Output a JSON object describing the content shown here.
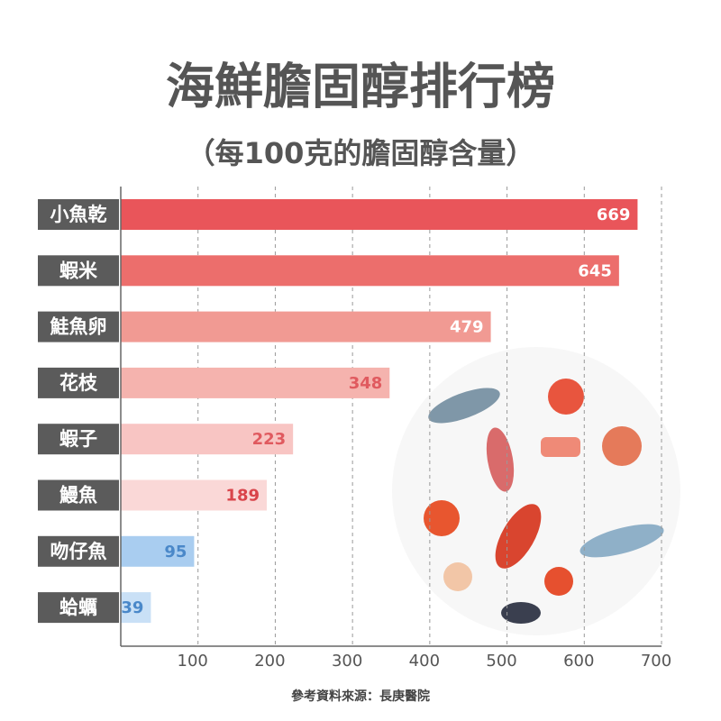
{
  "chart_data": {
    "type": "barh",
    "title": "海鮮膽固醇排行榜",
    "subtitle": "（每100克的膽固醇含量）",
    "source": "參考資料來源：長庚醫院",
    "categories": [
      "小魚乾",
      "蝦米",
      "鮭魚卵",
      "花枝",
      "蝦子",
      "鰻魚",
      "吻仔魚",
      "蛤蠣"
    ],
    "values": [
      669,
      645,
      479,
      348,
      223,
      189,
      95,
      39
    ],
    "colors": [
      "#e9555a",
      "#ec6e6c",
      "#f19a93",
      "#f5b3ae",
      "#f8c5c3",
      "#fad8d7",
      "#a9cdf0",
      "#c9e0f6"
    ],
    "value_label_colors": [
      "#ffffff",
      "#ffffff",
      "#ffffff",
      "#e05a5f",
      "#e05a5f",
      "#d9444a",
      "#4a88c9",
      "#4a88c9"
    ],
    "xlim": [
      0,
      700
    ],
    "xticks": [
      100,
      200,
      300,
      400,
      500,
      600,
      700
    ],
    "grid": true
  }
}
